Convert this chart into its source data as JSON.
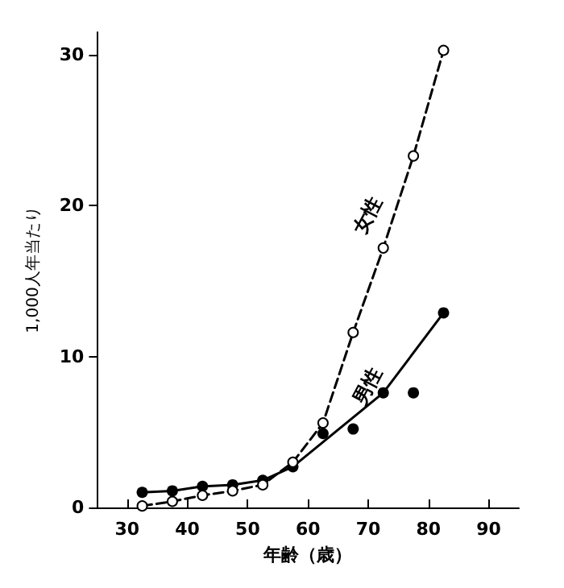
{
  "chart_data": {
    "type": "line",
    "xlabel": "年齢（歳）",
    "ylabel": "1,000人年当たり",
    "xlim": [
      25,
      95
    ],
    "xticks": [
      30,
      40,
      50,
      60,
      70,
      80,
      90
    ],
    "ylim": [
      0,
      31.5
    ],
    "yticks": [
      0,
      10,
      20,
      30
    ],
    "grid": false,
    "legend": false,
    "series": [
      {
        "name": "女性",
        "color": "#000000",
        "line_style": "dashed",
        "marker": "circle",
        "x": [
          32.5,
          37.5,
          42.5,
          47.5,
          52.5,
          57.5,
          62.5,
          67.5,
          72.5,
          77.5,
          82.5
        ],
        "values": [
          0.1,
          0.4,
          0.8,
          1.1,
          1.5,
          3.0,
          5.6,
          11.6,
          17.2,
          23.3,
          30.3
        ]
      },
      {
        "type": "scatter",
        "color": "#000000",
        "marker": "circle",
        "x": [
          32.5,
          37.5,
          42.5,
          47.5,
          52.5,
          57.5,
          62.5,
          67.5,
          72.5,
          77.5,
          82.5
        ],
        "values": [
          1.0,
          1.1,
          1.4,
          1.5,
          1.8,
          2.7,
          4.9,
          5.2,
          7.6,
          7.6,
          12.9
        ]
      },
      {
        "type": "line",
        "name": "男性",
        "color": "#000000",
        "line_style": "solid",
        "marker": "none",
        "x": [
          32.5,
          37.5,
          42.5,
          47.5,
          52.5,
          57.5,
          72.5,
          82.5
        ],
        "values": [
          1.0,
          1.1,
          1.4,
          1.5,
          1.8,
          2.7,
          7.6,
          12.9
        ]
      }
    ]
  }
}
